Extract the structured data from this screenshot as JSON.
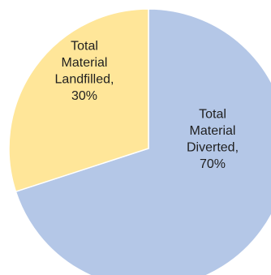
{
  "chart_data": {
    "type": "pie",
    "title": "",
    "start_angle_deg": 0,
    "direction": "clockwise",
    "slices": [
      {
        "label": "Total Material Diverted",
        "value": 70,
        "label_lines": [
          "Total",
          "Material",
          "Diverted,",
          "70%"
        ],
        "color": "#b4c7e7"
      },
      {
        "label": "Total Material Landfilled",
        "value": 30,
        "label_lines": [
          "Total",
          "Material",
          "Landfilled,",
          "30%"
        ],
        "color": "#ffe699"
      }
    ]
  }
}
